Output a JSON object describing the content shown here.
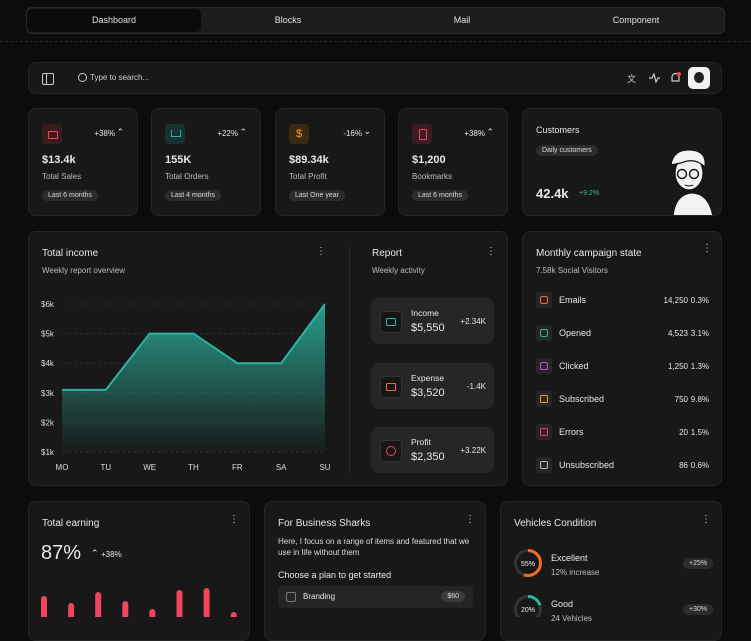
{
  "tabs": [
    "Dashboard",
    "Blocks",
    "Mail",
    "Component"
  ],
  "search_placeholder": "Type to search...",
  "stats": [
    {
      "change": "+38%",
      "value": "$13.4k",
      "label": "Total Sales",
      "period": "Last 6 months"
    },
    {
      "change": "+22%",
      "value": "155K",
      "label": "Total Orders",
      "period": "Last 4 months"
    },
    {
      "change": "-16%",
      "value": "$89.34k",
      "label": "Total Profit",
      "period": "Last One year"
    },
    {
      "change": "+38%",
      "value": "$1,200",
      "label": "Bookmarks",
      "period": "Last 6 months"
    }
  ],
  "customers": {
    "title": "Customers",
    "badge": "Daily customers",
    "value": "42.4k",
    "change": "+9.2%"
  },
  "chart_data": [
    {
      "type": "area",
      "title": "Total income",
      "subtitle": "Weekly report overview",
      "categories": [
        "MO",
        "TU",
        "WE",
        "TH",
        "FR",
        "SA",
        "SU"
      ],
      "values": [
        3.1,
        3.1,
        5,
        5,
        4,
        4,
        6
      ],
      "color": "#2bb5a0",
      "ylim": [
        1,
        6
      ],
      "yticks": [
        {
          "value": 1,
          "label": "$1k"
        },
        {
          "value": 2,
          "label": "$2k"
        },
        {
          "value": 3,
          "label": "$3k"
        },
        {
          "value": 4,
          "label": "$4k"
        },
        {
          "value": 5,
          "label": "$5k"
        },
        {
          "value": 6,
          "label": "$6k"
        }
      ],
      "grid": true
    },
    {
      "type": "bar",
      "title": "Total earning",
      "headline": "87%",
      "change": "+38%",
      "values": [
        29,
        22,
        33,
        24,
        16,
        35,
        37,
        13
      ],
      "color": "#f0455a"
    }
  ],
  "report": {
    "title": "Report",
    "subtitle": "Weekly activity",
    "items": [
      {
        "label": "Income",
        "value": "$5,550",
        "change": "+2.34K"
      },
      {
        "label": "Expense",
        "value": "$3,520",
        "change": "-1.4K"
      },
      {
        "label": "Profit",
        "value": "$2,350",
        "change": "+3.22K"
      }
    ]
  },
  "campaign": {
    "title": "Monthly campaign state",
    "subtitle": "7.58k Social Visitors",
    "rows": [
      {
        "label": "Emails",
        "count": "14,250",
        "percent": "0.3%"
      },
      {
        "label": "Opened",
        "count": "4,523",
        "percent": "3.1%"
      },
      {
        "label": "Clicked",
        "count": "1,250",
        "percent": "1.3%"
      },
      {
        "label": "Subscribed",
        "count": "750",
        "percent": "9.8%"
      },
      {
        "label": "Errors",
        "count": "20",
        "percent": "1.5%"
      },
      {
        "label": "Unsubscribed",
        "count": "86",
        "percent": "0.6%"
      }
    ]
  },
  "business": {
    "title": "For Business Sharks",
    "text": "Here, I focus on a range of items and featured that we use in life without them",
    "heading": "Choose a plan to get started",
    "plans": [
      {
        "name": "Branding",
        "price": "$60"
      }
    ]
  },
  "vehicles": {
    "title": "Vehicles Condition",
    "items": [
      {
        "name": "Excellent",
        "note": "12% increase",
        "percent": {
          "value": 55,
          "label": "55%"
        },
        "change": "+25%",
        "color": "#f26b2a"
      },
      {
        "name": "Good",
        "note": "24 Vehicles",
        "percent": {
          "value": 20,
          "label": "20%"
        },
        "change": "+30%",
        "color": "#2bb5a0"
      }
    ]
  }
}
